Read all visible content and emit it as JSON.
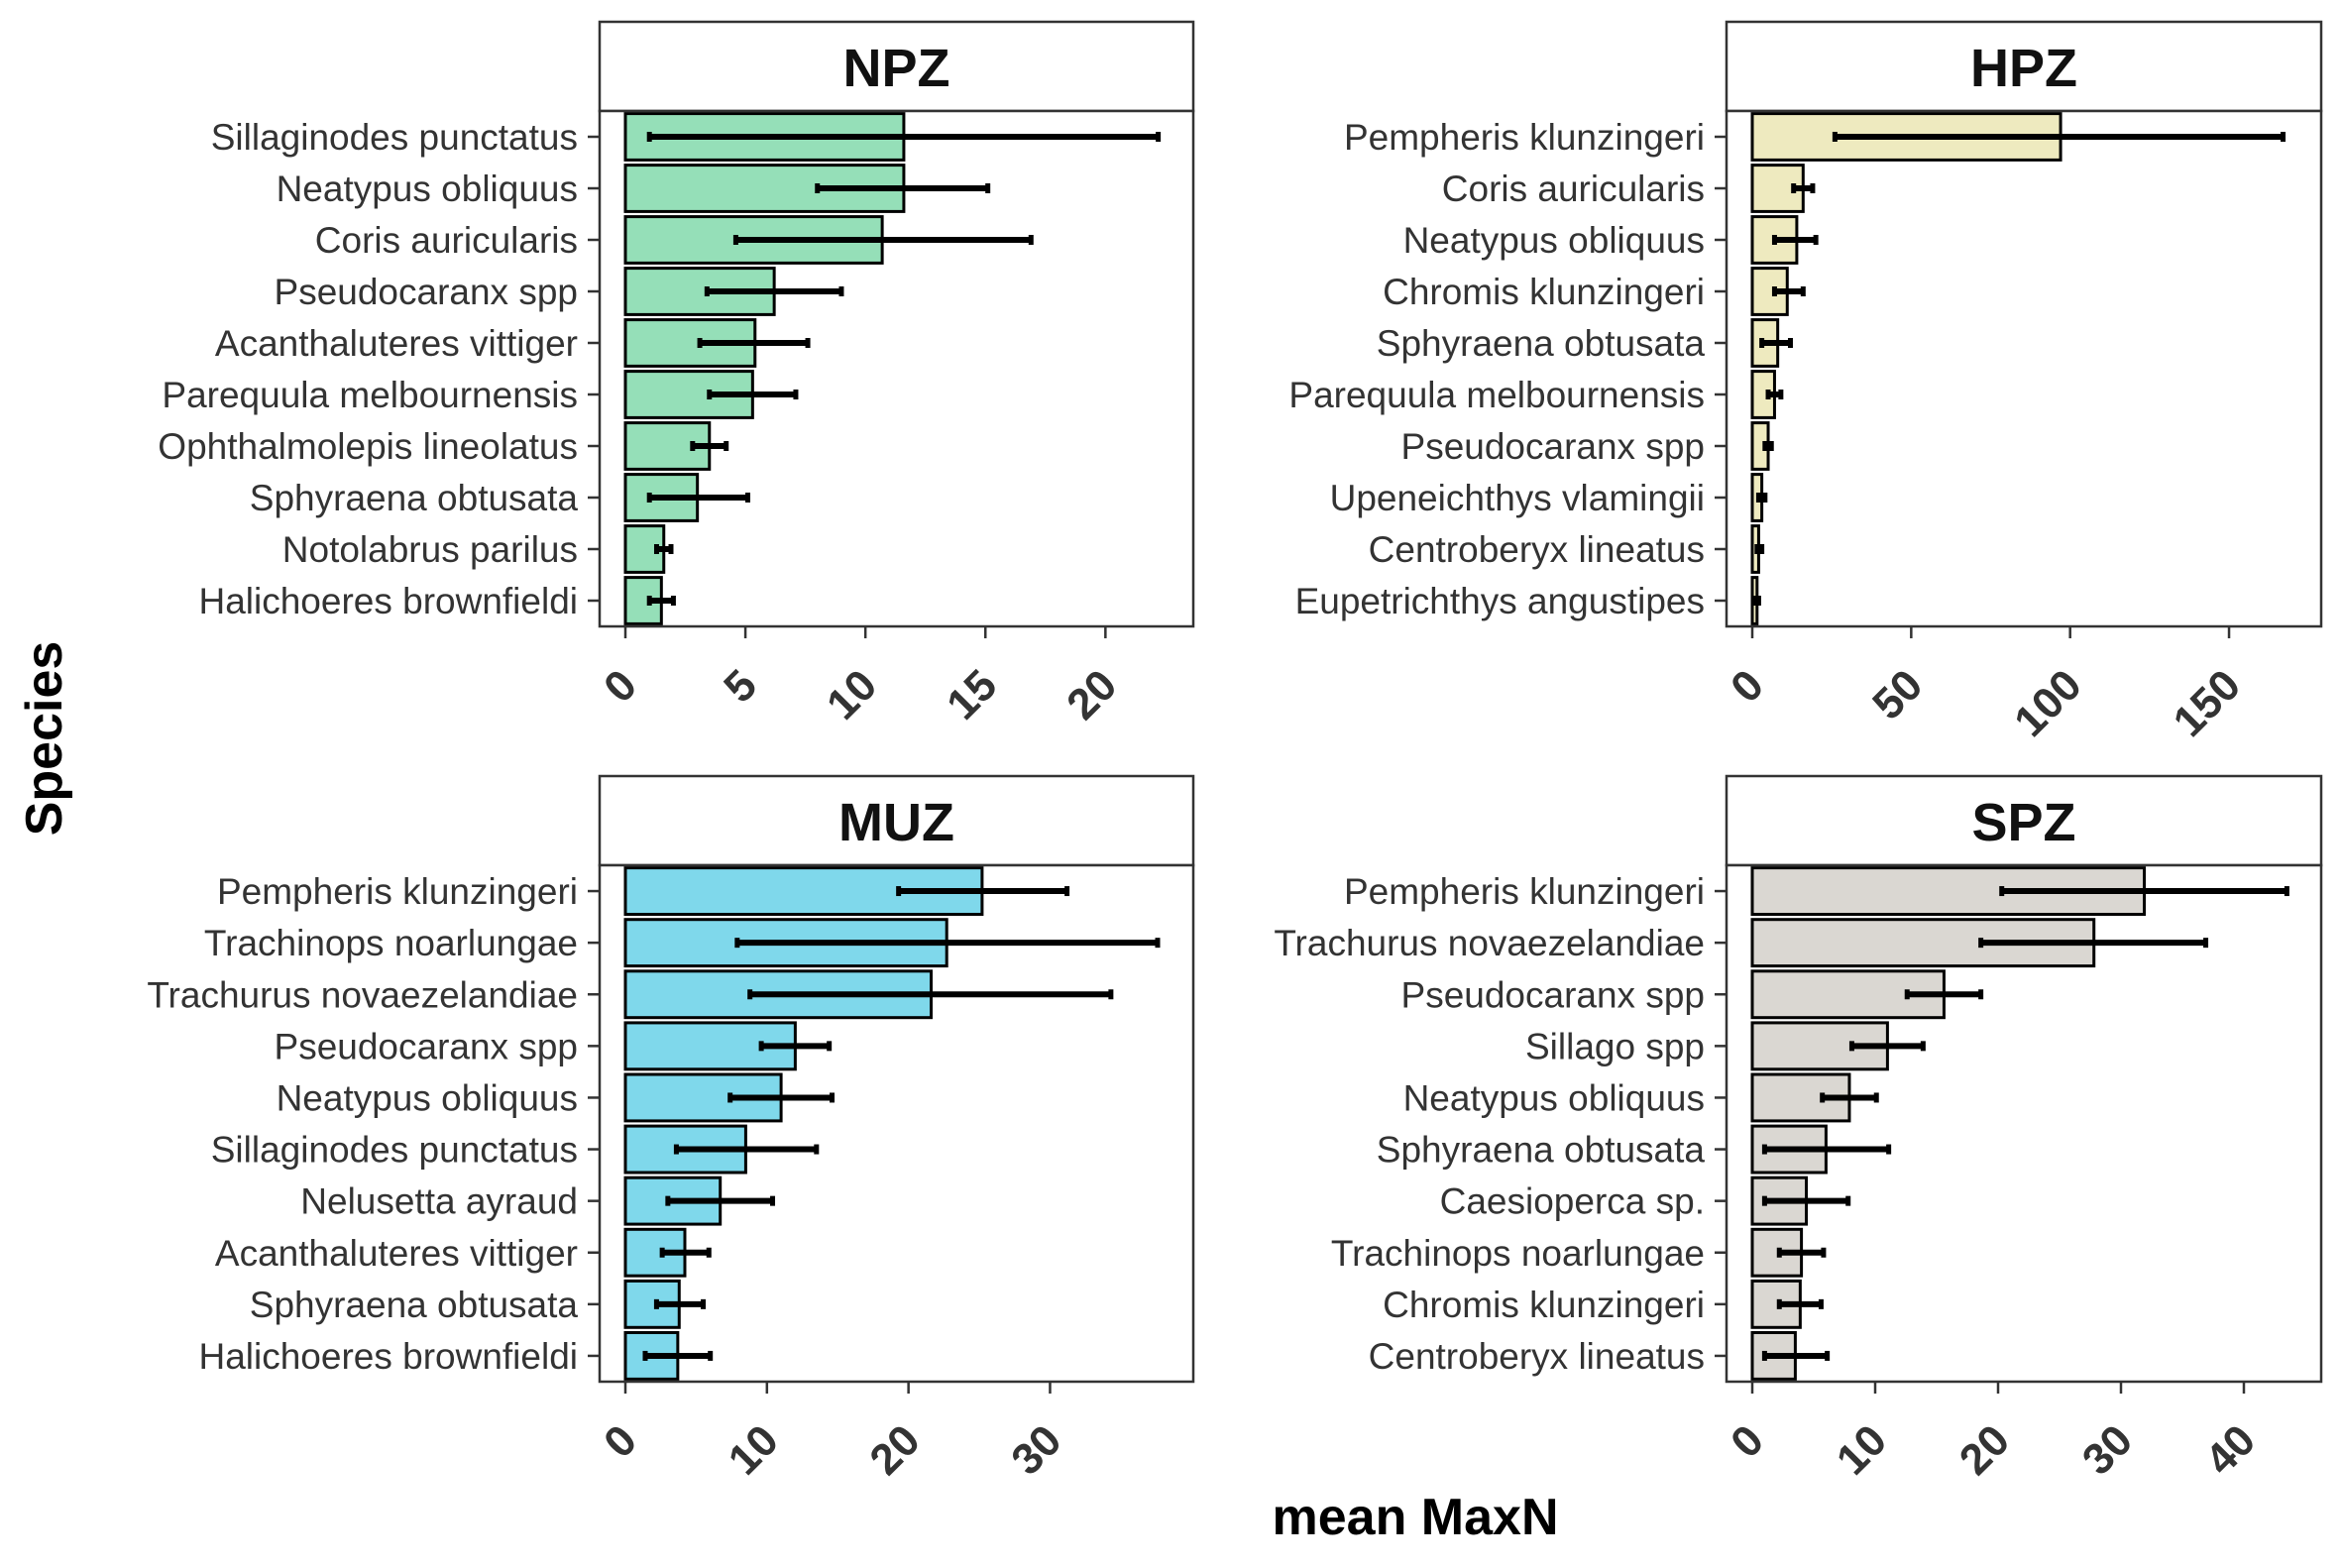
{
  "x_axis_title": "mean MaxN",
  "y_axis_title": "Species",
  "chart_data": [
    {
      "type": "bar",
      "orientation": "horizontal",
      "title": "NPZ",
      "color": "#95DFB8",
      "xlim": [
        0,
        23
      ],
      "xticks": [
        0,
        5,
        10,
        15,
        20
      ],
      "categories": [
        "Sillaginodes punctatus",
        "Neatypus obliquus",
        "Coris auricularis",
        "Pseudocaranx spp",
        "Acanthaluteres vittiger",
        "Parequula melbournensis",
        "Ophthalmolepis lineolatus",
        "Sphyraena obtusata",
        "Notolabrus parilus",
        "Halichoeres brownfieldi"
      ],
      "values": [
        11.6,
        11.6,
        10.7,
        6.2,
        5.4,
        5.3,
        3.5,
        3.0,
        1.6,
        1.5
      ],
      "error_low": [
        1.0,
        8.0,
        4.6,
        3.4,
        3.1,
        3.5,
        2.8,
        1.0,
        1.3,
        1.0
      ],
      "error_high": [
        22.2,
        15.1,
        16.9,
        9.0,
        7.6,
        7.1,
        4.2,
        5.1,
        1.9,
        2.0
      ]
    },
    {
      "type": "bar",
      "orientation": "horizontal",
      "title": "HPZ",
      "color": "#EEEABF",
      "xlim": [
        0,
        174
      ],
      "xticks": [
        0,
        50,
        100,
        150
      ],
      "categories": [
        "Pempheris klunzingeri",
        "Coris auricularis",
        "Neatypus obliquus",
        "Chromis klunzingeri",
        "Sphyraena obtusata",
        "Parequula melbournensis",
        "Pseudocaranx spp",
        "Upeneichthys vlamingii",
        "Centroberyx lineatus",
        "Eupetrichthys angustipes"
      ],
      "values": [
        97,
        16,
        14,
        11,
        8,
        7,
        5,
        3,
        2,
        1.5
      ],
      "error_low": [
        26,
        13,
        7,
        7,
        3,
        5,
        4,
        2,
        1.5,
        1
      ],
      "error_high": [
        167,
        19,
        20,
        16,
        12,
        9,
        6,
        4,
        3,
        2
      ]
    },
    {
      "type": "bar",
      "orientation": "horizontal",
      "title": "MUZ",
      "color": "#7FD8EB",
      "xlim": [
        0,
        39
      ],
      "xticks": [
        0,
        10,
        20,
        30
      ],
      "categories": [
        "Pempheris klunzingeri",
        "Trachinops noarlungae",
        "Trachurus novaezelandiae",
        "Pseudocaranx spp",
        "Neatypus obliquus",
        "Sillaginodes punctatus",
        "Nelusetta ayraud",
        "Acanthaluteres vittiger",
        "Sphyraena obtusata",
        "Halichoeres brownfieldi"
      ],
      "values": [
        25.2,
        22.7,
        21.6,
        12.0,
        11.0,
        8.5,
        6.7,
        4.2,
        3.8,
        3.7
      ],
      "error_low": [
        19.3,
        7.9,
        8.8,
        9.6,
        7.4,
        3.6,
        3.0,
        2.6,
        2.2,
        1.4
      ],
      "error_high": [
        31.2,
        37.6,
        34.3,
        14.4,
        14.6,
        13.5,
        10.4,
        5.9,
        5.5,
        6.0
      ]
    },
    {
      "type": "bar",
      "orientation": "horizontal",
      "title": "SPZ",
      "color": "#DAD7D2",
      "xlim": [
        0,
        45
      ],
      "xticks": [
        0,
        10,
        20,
        30,
        40
      ],
      "categories": [
        "Pempheris klunzingeri",
        "Trachurus novaezelandiae",
        "Pseudocaranx spp",
        "Sillago spp",
        "Neatypus obliquus",
        "Sphyraena obtusata",
        "Caesioperca sp.",
        "Trachinops noarlungae",
        "Chromis klunzingeri",
        "Centroberyx lineatus"
      ],
      "values": [
        31.9,
        27.8,
        15.6,
        11.0,
        7.9,
        6.0,
        4.4,
        4.0,
        3.9,
        3.5
      ],
      "error_low": [
        20.3,
        18.6,
        12.6,
        8.1,
        5.7,
        1.0,
        1.0,
        2.2,
        2.2,
        1.0
      ],
      "error_high": [
        43.5,
        36.9,
        18.6,
        13.9,
        10.1,
        11.1,
        7.8,
        5.8,
        5.6,
        6.1
      ]
    }
  ]
}
